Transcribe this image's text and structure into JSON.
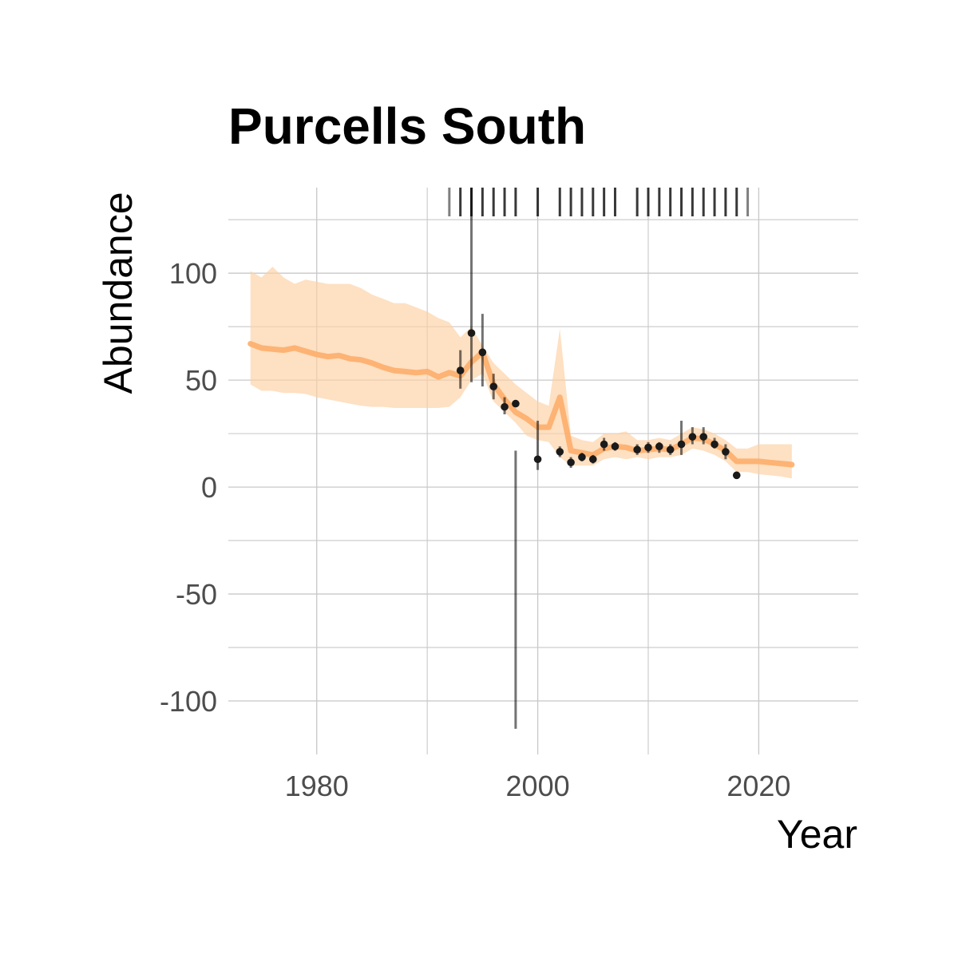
{
  "chart_data": {
    "type": "line",
    "title": "Purcells South",
    "xlabel": "Year",
    "ylabel": "Abundance",
    "xlim": [
      1972,
      2029
    ],
    "ylim": [
      -125,
      140
    ],
    "x_ticks": [
      1980,
      2000,
      2020
    ],
    "x_minor_ticks": [
      1990,
      2010
    ],
    "y_ticks": [
      -100,
      -50,
      0,
      50,
      100
    ],
    "y_minor_ticks": [
      -75,
      -25,
      25,
      75,
      125
    ],
    "grid": true,
    "legend": "none",
    "colors": {
      "estimate_line": "#fdae6b",
      "ribbon": "#fdd0a2",
      "observation": "#1a1a1a",
      "error_bar": "#000000",
      "rug": "#000000",
      "grid": "#c8c8c8"
    },
    "series": [
      {
        "type": "line_with_ribbon",
        "x": [
          1974,
          1975,
          1976,
          1977,
          1978,
          1979,
          1980,
          1981,
          1982,
          1983,
          1984,
          1985,
          1986,
          1987,
          1988,
          1989,
          1990,
          1991,
          1992,
          1993,
          1994,
          1995,
          1996,
          1997,
          1998,
          1999,
          2000,
          2001,
          2002,
          2003,
          2004,
          2005,
          2006,
          2007,
          2008,
          2009,
          2010,
          2011,
          2012,
          2013,
          2014,
          2015,
          2016,
          2017,
          2018,
          2019,
          2020,
          2021,
          2022,
          2023
        ],
        "y": [
          67,
          65,
          64.5,
          64,
          65,
          63.5,
          62,
          61,
          61.5,
          60,
          59.5,
          58,
          56,
          54.5,
          54,
          53.5,
          54,
          51.5,
          53.5,
          52,
          58.5,
          63,
          48,
          41,
          35,
          32,
          28,
          28,
          42,
          17,
          16,
          15,
          18,
          19,
          18.5,
          17,
          17.5,
          18,
          17.5,
          20,
          23,
          22.5,
          20,
          17,
          12,
          12,
          12,
          11.5,
          11,
          10.5
        ],
        "lower": [
          48,
          45,
          45,
          44,
          44,
          43.5,
          42,
          41,
          40,
          39,
          38,
          37.5,
          37.5,
          37,
          37,
          37,
          37,
          37,
          37.5,
          42,
          50,
          53,
          40,
          35,
          30,
          24,
          22,
          21,
          14,
          10,
          10,
          10,
          13,
          14,
          13,
          14,
          13,
          14,
          14,
          15,
          18,
          17,
          15,
          12,
          7,
          7,
          6,
          5.5,
          5,
          4
        ],
        "upper": [
          101,
          98,
          103,
          98,
          95,
          97,
          96,
          95,
          95,
          95,
          93,
          90,
          88,
          86,
          86,
          84,
          82,
          79,
          77,
          70,
          75,
          66,
          58,
          53,
          48,
          44,
          40,
          38,
          74,
          24,
          22,
          21,
          25,
          25,
          26,
          22,
          22,
          23,
          22,
          25,
          28,
          27,
          25,
          22,
          18,
          18,
          20,
          20,
          20,
          20
        ]
      },
      {
        "type": "points_with_errorbars",
        "x": [
          1993,
          1994,
          1995,
          1996,
          1997,
          1998,
          2000,
          2002,
          2003,
          2004,
          2005,
          2006,
          2007,
          2009,
          2010,
          2011,
          2012,
          2013,
          2014,
          2015,
          2016,
          2017,
          2018
        ],
        "y": [
          54.5,
          72,
          63,
          47,
          37.5,
          39,
          13,
          16.5,
          11.5,
          14,
          13,
          20,
          19,
          17.5,
          18.5,
          19,
          17.5,
          20,
          23.5,
          23.5,
          20,
          16.5,
          5.5
        ],
        "lower": [
          46,
          49,
          47,
          41,
          34,
          -113,
          8,
          14,
          9,
          12,
          11,
          17,
          17,
          15,
          16,
          16,
          15,
          15,
          20,
          20,
          18,
          13,
          4
        ],
        "upper": [
          64,
          151,
          81,
          53,
          42,
          17,
          31,
          19,
          14,
          16,
          15,
          23,
          21,
          20,
          21,
          21,
          20,
          31,
          28,
          28,
          23,
          20,
          7
        ]
      }
    ],
    "rug": {
      "x": [
        1992,
        1993,
        1994,
        1995,
        1996,
        1997,
        1998,
        2000,
        2002,
        2003,
        2004,
        2005,
        2006,
        2007,
        2009,
        2010,
        2011,
        2012,
        2013,
        2014,
        2015,
        2016,
        2017,
        2018,
        2019
      ],
      "faded": [
        1992,
        2019
      ]
    }
  }
}
